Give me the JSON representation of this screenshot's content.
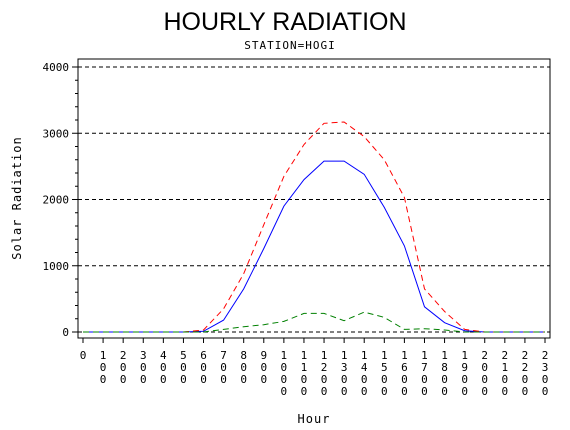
{
  "chart_data": {
    "type": "line",
    "title": "HOURLY RADIATION",
    "subtitle": "STATION=HOGI",
    "xlabel": "Hour",
    "ylabel": "Solar Radiation",
    "xlim": [
      0,
      2300
    ],
    "ylim": [
      0,
      4000
    ],
    "x_ticks": [
      0,
      100,
      200,
      300,
      400,
      500,
      600,
      700,
      800,
      900,
      1000,
      1100,
      1200,
      1300,
      1400,
      1500,
      1600,
      1700,
      1800,
      1900,
      2000,
      2100,
      2200,
      2300
    ],
    "y_ticks": [
      0,
      1000,
      2000,
      3000,
      4000
    ],
    "gridlines": "horizontal dashed at major y ticks",
    "x": [
      0,
      100,
      200,
      300,
      400,
      500,
      600,
      700,
      800,
      900,
      1000,
      1100,
      1200,
      1300,
      1400,
      1500,
      1600,
      1700,
      1800,
      1900,
      2000,
      2100,
      2200,
      2300
    ],
    "series": [
      {
        "color": "#0000ff",
        "style": "solid",
        "values": [
          0,
          0,
          0,
          0,
          0,
          0,
          10,
          180,
          650,
          1260,
          1900,
          2300,
          2580,
          2580,
          2380,
          1880,
          1300,
          380,
          140,
          20,
          0,
          0,
          0,
          0
        ]
      },
      {
        "color": "#ff0000",
        "style": "dashed",
        "values": [
          0,
          0,
          0,
          0,
          0,
          0,
          30,
          350,
          880,
          1620,
          2350,
          2830,
          3150,
          3170,
          2950,
          2600,
          2030,
          650,
          310,
          40,
          0,
          0,
          0,
          0
        ]
      },
      {
        "color": "#008000",
        "style": "dashed",
        "values": [
          0,
          0,
          0,
          0,
          0,
          0,
          0,
          40,
          80,
          110,
          160,
          280,
          280,
          170,
          300,
          220,
          40,
          50,
          30,
          0,
          0,
          0,
          0,
          0
        ]
      }
    ]
  }
}
